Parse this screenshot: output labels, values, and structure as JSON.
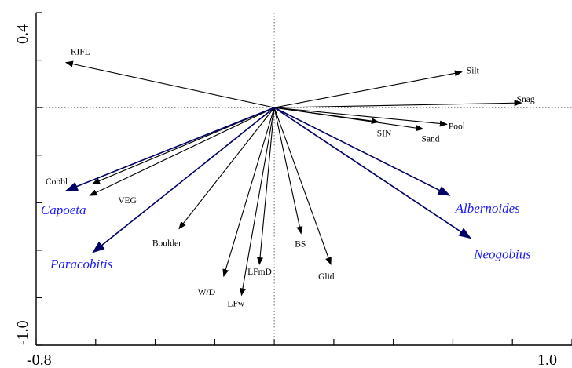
{
  "chart_data": {
    "type": "biplot",
    "title": "",
    "xlim": [
      -0.8,
      1.0
    ],
    "ylim": [
      -1.0,
      0.4
    ],
    "x_tick_labels": [
      "-0.8",
      "1.0"
    ],
    "y_tick_labels": [
      "0.4",
      "-1.0"
    ],
    "origin": [
      0,
      0
    ],
    "grid": false,
    "reference_lines": "dashed lines at x=0 and y=0",
    "colors": {
      "environmental": "#000000",
      "species_arrow": "#000066",
      "species_label": "#1a1aff"
    },
    "environmental_vectors": [
      {
        "label": "RIFL",
        "x": -0.7,
        "y": 0.19
      },
      {
        "label": "Silt",
        "x": 0.63,
        "y": 0.15
      },
      {
        "label": "Snag",
        "x": 0.83,
        "y": 0.02
      },
      {
        "label": "SIN",
        "x": 0.35,
        "y": -0.06
      },
      {
        "label": "Sand",
        "x": 0.5,
        "y": -0.09
      },
      {
        "label": "Pool",
        "x": 0.58,
        "y": -0.07
      },
      {
        "label": "Cobbl",
        "x": -0.61,
        "y": -0.32
      },
      {
        "label": "VEG",
        "x": -0.62,
        "y": -0.37
      },
      {
        "label": "Boulder",
        "x": -0.32,
        "y": -0.51
      },
      {
        "label": "W/D",
        "x": -0.17,
        "y": -0.71
      },
      {
        "label": "LFmD",
        "x": -0.05,
        "y": -0.66
      },
      {
        "label": "LFw",
        "x": -0.11,
        "y": -0.79
      },
      {
        "label": "BS",
        "x": 0.09,
        "y": -0.53
      },
      {
        "label": "Glid",
        "x": 0.19,
        "y": -0.66
      }
    ],
    "species_vectors": [
      {
        "label": "Capoeta",
        "x": -0.7,
        "y": -0.35
      },
      {
        "label": "Paracobitis",
        "x": -0.61,
        "y": -0.61
      },
      {
        "label": "Albernoides",
        "x": 0.59,
        "y": -0.37
      },
      {
        "label": "Neogobius",
        "x": 0.66,
        "y": -0.55
      }
    ]
  }
}
